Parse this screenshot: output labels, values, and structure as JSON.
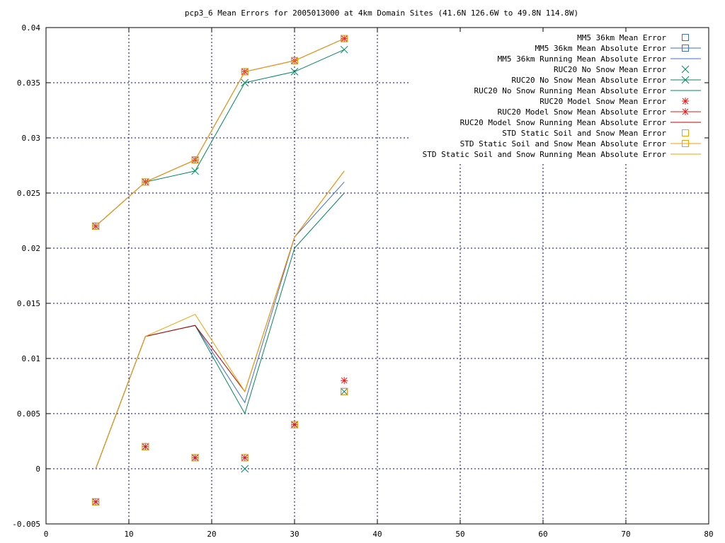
{
  "chart_data": {
    "type": "line",
    "title": "pcp3_6 Mean Errors for 2005013000 at 4km Domain Sites (41.6N 126.6W to 49.8N 114.8W)",
    "xlabel": "",
    "ylabel": "",
    "xlim": [
      0,
      80
    ],
    "ylim": [
      -0.005,
      0.04
    ],
    "x_ticks": [
      0,
      10,
      20,
      30,
      40,
      50,
      60,
      70,
      80
    ],
    "y_ticks": [
      -0.005,
      0,
      0.005,
      0.01,
      0.015,
      0.02,
      0.025,
      0.03,
      0.035,
      0.04
    ],
    "x_tick_labels": [
      "0",
      "10",
      "20",
      "30",
      "40",
      "50",
      "60",
      "70",
      "80"
    ],
    "y_tick_labels": [
      "-0.005",
      "0",
      "0.005",
      "0.01",
      "0.015",
      "0.02",
      "0.025",
      "0.03",
      "0.035",
      "0.04"
    ],
    "grid": true,
    "legend_position": "top-right",
    "series": [
      {
        "name": "MM5 36km Mean Error",
        "color": "#3b6fd6",
        "style": "points",
        "marker": "square",
        "x": [
          6,
          12,
          18,
          24,
          30,
          36
        ],
        "y": [
          -0.003,
          0.002,
          0.001,
          0.001,
          0.004,
          0.007
        ]
      },
      {
        "name": "MM5 36km Mean Absolute Error",
        "color": "#3b6fd6",
        "style": "linespoints",
        "marker": "square",
        "x": [
          6,
          12,
          18,
          24,
          30,
          36
        ],
        "y": [
          0.022,
          0.026,
          0.028,
          0.036,
          0.037,
          0.039
        ]
      },
      {
        "name": "MM5 36km Running Mean Absolute Error",
        "color": "#3b6fd6",
        "style": "line",
        "marker": "none",
        "x": [
          6,
          12,
          18,
          24,
          30,
          36
        ],
        "y": [
          0,
          0.012,
          0.013,
          0.006,
          0.021,
          0.026
        ]
      },
      {
        "name": "RUC20 No Snow Mean Error",
        "color": "#00895a",
        "style": "points",
        "marker": "x",
        "x": [
          6,
          12,
          18,
          24,
          30,
          36
        ],
        "y": [
          -0.003,
          0.002,
          0.001,
          0,
          0.004,
          0.007
        ]
      },
      {
        "name": "RUC20 No Snow Mean Absolute Error",
        "color": "#00895a",
        "style": "linespoints",
        "marker": "x",
        "x": [
          6,
          12,
          18,
          24,
          30,
          36
        ],
        "y": [
          0.022,
          0.026,
          0.027,
          0.035,
          0.036,
          0.038
        ]
      },
      {
        "name": "RUC20 No Snow Running Mean Absolute Error",
        "color": "#00895a",
        "style": "line",
        "marker": "none",
        "x": [
          6,
          12,
          18,
          24,
          30,
          36
        ],
        "y": [
          0,
          0.012,
          0.013,
          0.005,
          0.02,
          0.025
        ]
      },
      {
        "name": "RUC20 Model Snow Mean Error",
        "color": "#e01a1a",
        "style": "points",
        "marker": "star",
        "x": [
          6,
          12,
          18,
          24,
          30,
          36
        ],
        "y": [
          -0.003,
          0.002,
          0.001,
          0.001,
          0.004,
          0.008
        ]
      },
      {
        "name": "RUC20 Model Snow Mean Absolute Error",
        "color": "#e01a1a",
        "style": "linespoints",
        "marker": "star",
        "x": [
          6,
          12,
          18,
          24,
          30,
          36
        ],
        "y": [
          0.022,
          0.026,
          0.028,
          0.036,
          0.037,
          0.039
        ]
      },
      {
        "name": "RUC20 Model Snow Running Mean Absolute Error",
        "color": "#c40000",
        "style": "line",
        "marker": "none",
        "x": [
          6,
          12,
          18,
          24,
          30,
          36
        ],
        "y": [
          0,
          0.012,
          0.013,
          0.007,
          0.021,
          0.027
        ]
      },
      {
        "name": "STD Static Soil and Snow Mean Error",
        "color": "#f5a000",
        "style": "points",
        "marker": "square",
        "x": [
          6,
          12,
          18,
          24,
          30,
          36
        ],
        "y": [
          -0.003,
          0.002,
          0.001,
          0.001,
          0.004,
          0.007
        ]
      },
      {
        "name": "STD Static Soil and Snow Mean Absolute Error",
        "color": "#f5a000",
        "style": "linespoints",
        "marker": "square",
        "x": [
          6,
          12,
          18,
          24,
          30,
          36
        ],
        "y": [
          0.022,
          0.026,
          0.028,
          0.036,
          0.037,
          0.039
        ]
      },
      {
        "name": "STD Static Soil and Snow Running Mean Absolute Error",
        "color": "#f5a000",
        "style": "line",
        "marker": "none",
        "x": [
          6,
          12,
          18,
          24,
          30,
          36
        ],
        "y": [
          0,
          0.012,
          0.014,
          0.007,
          0.021,
          0.027
        ]
      }
    ]
  }
}
